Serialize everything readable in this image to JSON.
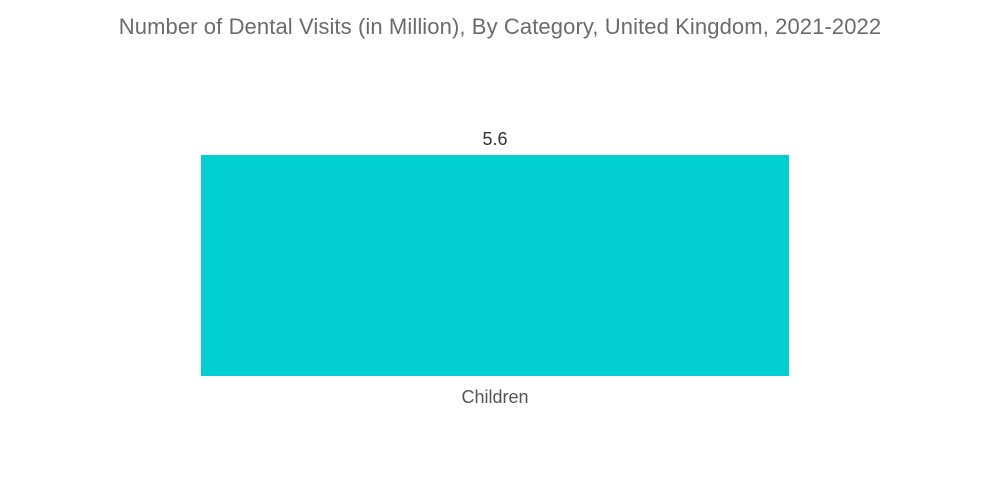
{
  "chart_data": {
    "type": "bar",
    "title": "Number of Dental Visits (in Million), By Category, United Kingdom, 2021-2022",
    "categories": [
      "Children"
    ],
    "values": [
      5.6
    ],
    "value_labels": [
      "5.6"
    ],
    "xlabel": "",
    "ylabel": "",
    "ylim": [
      0,
      5.6
    ],
    "grid": false,
    "legend": "none",
    "bar_color": "#00CED1"
  }
}
